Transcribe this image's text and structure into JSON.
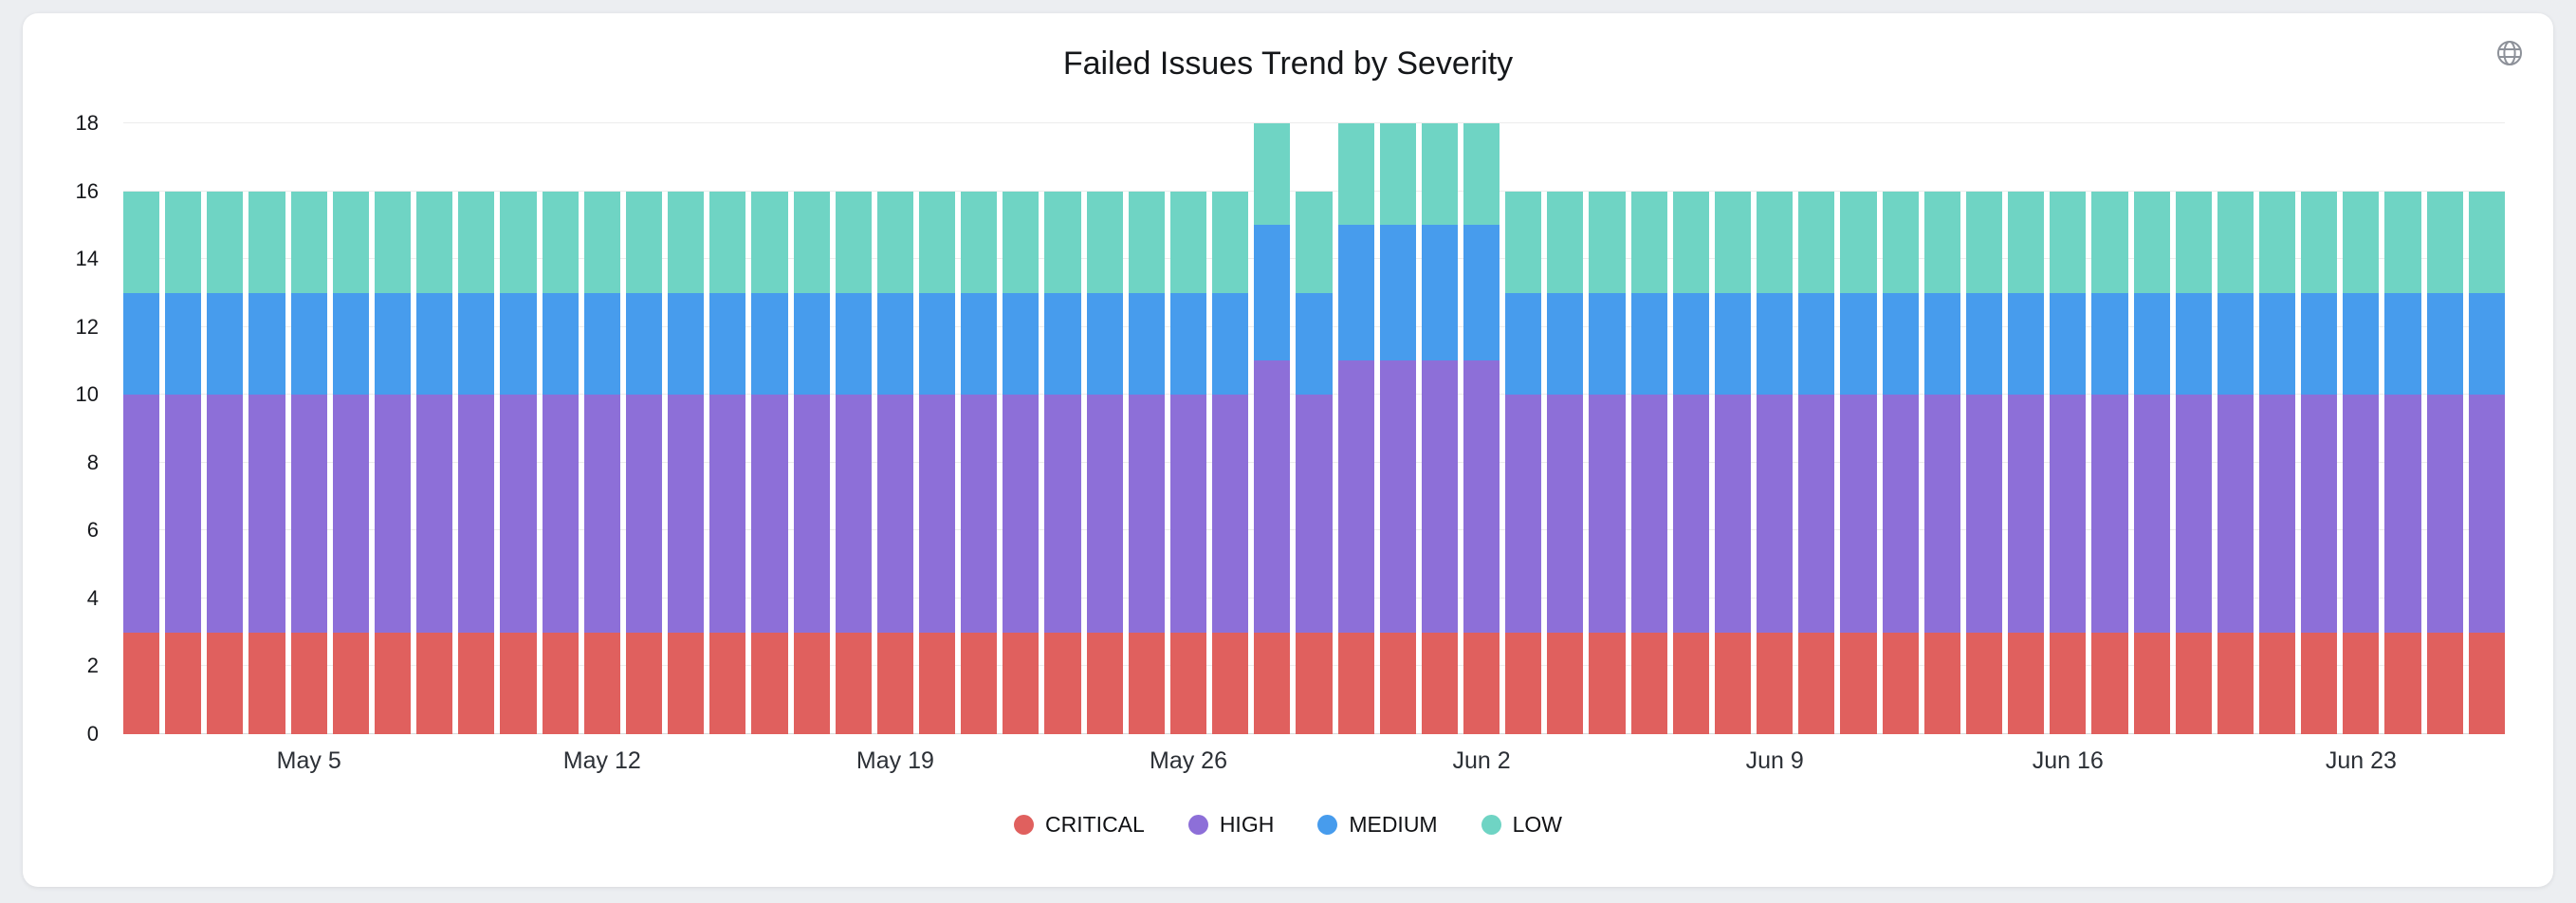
{
  "page": {
    "background": "#eceef1",
    "card_background": "#ffffff"
  },
  "header": {
    "globe_icon": "globe-icon"
  },
  "chart_data": {
    "type": "bar",
    "stacked": true,
    "title": "Failed Issues Trend by Severity",
    "grid": true,
    "legend_position": "bottom",
    "ylim": [
      0,
      18
    ],
    "yticks": [
      0,
      2,
      4,
      6,
      8,
      10,
      12,
      14,
      16,
      18
    ],
    "categories": [
      "May 1",
      "May 2",
      "May 3",
      "May 4",
      "May 5",
      "May 6",
      "May 7",
      "May 8",
      "May 9",
      "May 10",
      "May 11",
      "May 12",
      "May 13",
      "May 14",
      "May 15",
      "May 16",
      "May 17",
      "May 18",
      "May 19",
      "May 20",
      "May 21",
      "May 22",
      "May 23",
      "May 24",
      "May 25",
      "May 26",
      "May 27",
      "May 28",
      "May 29",
      "May 30",
      "May 31",
      "Jun 1",
      "Jun 2",
      "Jun 3",
      "Jun 4",
      "Jun 5",
      "Jun 6",
      "Jun 7",
      "Jun 8",
      "Jun 9",
      "Jun 10",
      "Jun 11",
      "Jun 12",
      "Jun 13",
      "Jun 14",
      "Jun 15",
      "Jun 16",
      "Jun 17",
      "Jun 18",
      "Jun 19",
      "Jun 20",
      "Jun 21",
      "Jun 22",
      "Jun 23",
      "Jun 24",
      "Jun 25",
      "Jun 26"
    ],
    "xtick_labels": [
      "May 5",
      "May 12",
      "May 19",
      "May 26",
      "Jun 2",
      "Jun 9",
      "Jun 16",
      "Jun 23"
    ],
    "series": [
      {
        "name": "CRITICAL",
        "color": "#e0605e",
        "values": [
          3,
          3,
          3,
          3,
          3,
          3,
          3,
          3,
          3,
          3,
          3,
          3,
          3,
          3,
          3,
          3,
          3,
          3,
          3,
          3,
          3,
          3,
          3,
          3,
          3,
          3,
          3,
          3,
          3,
          3,
          3,
          3,
          3,
          3,
          3,
          3,
          3,
          3,
          3,
          3,
          3,
          3,
          3,
          3,
          3,
          3,
          3,
          3,
          3,
          3,
          3,
          3,
          3,
          3,
          3,
          3,
          3
        ]
      },
      {
        "name": "HIGH",
        "color": "#8d6fd8",
        "values": [
          7,
          7,
          7,
          7,
          7,
          7,
          7,
          7,
          7,
          7,
          7,
          7,
          7,
          7,
          7,
          7,
          7,
          7,
          7,
          7,
          7,
          7,
          7,
          7,
          7,
          7,
          7,
          8,
          7,
          8,
          8,
          8,
          8,
          7,
          7,
          7,
          7,
          7,
          7,
          7,
          7,
          7,
          7,
          7,
          7,
          7,
          7,
          7,
          7,
          7,
          7,
          7,
          7,
          7,
          7,
          7,
          7
        ]
      },
      {
        "name": "MEDIUM",
        "color": "#479ced",
        "values": [
          3,
          3,
          3,
          3,
          3,
          3,
          3,
          3,
          3,
          3,
          3,
          3,
          3,
          3,
          3,
          3,
          3,
          3,
          3,
          3,
          3,
          3,
          3,
          3,
          3,
          3,
          3,
          4,
          3,
          4,
          4,
          4,
          4,
          3,
          3,
          3,
          3,
          3,
          3,
          3,
          3,
          3,
          3,
          3,
          3,
          3,
          3,
          3,
          3,
          3,
          3,
          3,
          3,
          3,
          3,
          3,
          3
        ]
      },
      {
        "name": "LOW",
        "color": "#6fd4c4",
        "values": [
          3,
          3,
          3,
          3,
          3,
          3,
          3,
          3,
          3,
          3,
          3,
          3,
          3,
          3,
          3,
          3,
          3,
          3,
          3,
          3,
          3,
          3,
          3,
          3,
          3,
          3,
          3,
          3,
          3,
          3,
          3,
          3,
          3,
          3,
          3,
          3,
          3,
          3,
          3,
          3,
          3,
          3,
          3,
          3,
          3,
          3,
          3,
          3,
          3,
          3,
          3,
          3,
          3,
          3,
          3,
          3,
          3
        ]
      }
    ]
  }
}
